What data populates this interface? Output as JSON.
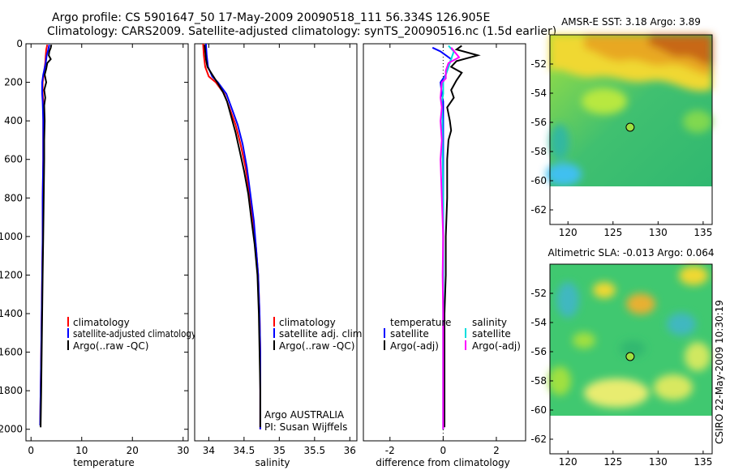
{
  "header": {
    "line1": "Argo profile: CS 5901647_50 17-May-2009 20090518_111 56.334S 126.905E",
    "line2": "Climatology: CARS2009. Satellite-adjusted climatology: synTS_20090516.nc (1.5d earlier)"
  },
  "footer_stamp": "CSIRO 22-May-2009 10:30:19",
  "chart_data": [
    {
      "type": "line",
      "id": "temperature",
      "xlabel": "temperature",
      "ylabel": "",
      "xlim": [
        -1,
        31
      ],
      "ylim": [
        2060,
        0
      ],
      "xticks": [
        0,
        10,
        20,
        30
      ],
      "yticks": [
        0,
        200,
        400,
        600,
        800,
        1000,
        1200,
        1400,
        1600,
        1800,
        2000
      ],
      "legend": [
        "climatology",
        "satellite-adjusted climatology",
        "Argo(..raw -QC)"
      ],
      "series": [
        {
          "name": "climatology",
          "color": "#ff0000",
          "points": [
            [
              3.2,
              5
            ],
            [
              3.0,
              30
            ],
            [
              2.9,
              60
            ],
            [
              2.8,
              100
            ],
            [
              2.5,
              160
            ],
            [
              2.3,
              200
            ],
            [
              2.3,
              260
            ],
            [
              2.4,
              300
            ],
            [
              2.4,
              400
            ],
            [
              2.4,
              600
            ],
            [
              2.3,
              800
            ],
            [
              2.3,
              1000
            ],
            [
              2.2,
              1200
            ],
            [
              2.1,
              1400
            ],
            [
              2.0,
              1600
            ],
            [
              1.9,
              1800
            ],
            [
              1.8,
              1980
            ]
          ]
        },
        {
          "name": "satellite-adjusted climatology",
          "color": "#0000ff",
          "points": [
            [
              3.6,
              5
            ],
            [
              3.4,
              30
            ],
            [
              3.1,
              60
            ],
            [
              2.9,
              100
            ],
            [
              2.4,
              160
            ],
            [
              2.2,
              200
            ],
            [
              2.2,
              260
            ],
            [
              2.3,
              300
            ],
            [
              2.4,
              400
            ],
            [
              2.4,
              600
            ],
            [
              2.3,
              800
            ],
            [
              2.3,
              1000
            ],
            [
              2.2,
              1200
            ],
            [
              2.1,
              1400
            ],
            [
              2.0,
              1600
            ],
            [
              1.9,
              1800
            ],
            [
              1.8,
              1980
            ]
          ]
        },
        {
          "name": "Argo(..raw -QC)",
          "color": "#000000",
          "points": [
            [
              4.0,
              5
            ],
            [
              3.9,
              20
            ],
            [
              3.6,
              40
            ],
            [
              3.5,
              60
            ],
            [
              3.9,
              80
            ],
            [
              3.2,
              100
            ],
            [
              3.0,
              130
            ],
            [
              2.7,
              160
            ],
            [
              3.0,
              200
            ],
            [
              2.6,
              240
            ],
            [
              2.8,
              280
            ],
            [
              2.6,
              320
            ],
            [
              2.7,
              400
            ],
            [
              2.6,
              500
            ],
            [
              2.6,
              600
            ],
            [
              2.5,
              800
            ],
            [
              2.4,
              1000
            ],
            [
              2.3,
              1200
            ],
            [
              2.2,
              1400
            ],
            [
              2.1,
              1600
            ],
            [
              2.0,
              1800
            ],
            [
              1.9,
              1990
            ]
          ]
        }
      ]
    },
    {
      "type": "line",
      "id": "salinity",
      "xlabel": "salinity",
      "xlim": [
        33.8,
        36.1
      ],
      "ylim": [
        2060,
        0
      ],
      "xticks": [
        34,
        34.5,
        35,
        35.5,
        36
      ],
      "legend": [
        "climatology",
        "satellite adj. clim.",
        "Argo(..raw -QC)"
      ],
      "annotation": [
        "Argo AUSTRALIA",
        "PI: Susan Wijffels"
      ],
      "series": [
        {
          "name": "climatology",
          "color": "#ff0000",
          "points": [
            [
              33.92,
              0
            ],
            [
              33.93,
              60
            ],
            [
              33.95,
              120
            ],
            [
              34.0,
              170
            ],
            [
              34.1,
              200
            ],
            [
              34.22,
              260
            ],
            [
              34.3,
              340
            ],
            [
              34.38,
              420
            ],
            [
              34.45,
              520
            ],
            [
              34.52,
              640
            ],
            [
              34.58,
              780
            ],
            [
              34.63,
              920
            ],
            [
              34.67,
              1060
            ],
            [
              34.7,
              1200
            ],
            [
              34.72,
              1400
            ],
            [
              34.73,
              1600
            ],
            [
              34.73,
              1800
            ],
            [
              34.73,
              2000
            ]
          ]
        },
        {
          "name": "satellite adj. clim.",
          "color": "#0000ff",
          "points": [
            [
              33.96,
              0
            ],
            [
              33.97,
              60
            ],
            [
              33.99,
              120
            ],
            [
              34.05,
              170
            ],
            [
              34.13,
              200
            ],
            [
              34.25,
              260
            ],
            [
              34.33,
              340
            ],
            [
              34.41,
              420
            ],
            [
              34.48,
              520
            ],
            [
              34.54,
              640
            ],
            [
              34.59,
              780
            ],
            [
              34.64,
              920
            ],
            [
              34.67,
              1060
            ],
            [
              34.7,
              1200
            ],
            [
              34.72,
              1400
            ],
            [
              34.73,
              1600
            ],
            [
              34.73,
              1800
            ],
            [
              34.73,
              2000
            ]
          ]
        },
        {
          "name": "Argo(..raw -QC)",
          "color": "#000000",
          "points": [
            [
              33.94,
              5
            ],
            [
              33.95,
              40
            ],
            [
              33.96,
              80
            ],
            [
              33.98,
              120
            ],
            [
              34.05,
              160
            ],
            [
              34.12,
              200
            ],
            [
              34.2,
              250
            ],
            [
              34.26,
              300
            ],
            [
              34.32,
              380
            ],
            [
              34.38,
              460
            ],
            [
              34.44,
              560
            ],
            [
              34.5,
              660
            ],
            [
              34.56,
              780
            ],
            [
              34.6,
              900
            ],
            [
              34.65,
              1040
            ],
            [
              34.69,
              1200
            ],
            [
              34.71,
              1400
            ],
            [
              34.72,
              1600
            ],
            [
              34.73,
              1800
            ],
            [
              34.73,
              1990
            ]
          ]
        }
      ]
    },
    {
      "type": "line",
      "id": "difference",
      "xlabel": "difference from climatology",
      "xlim": [
        -3,
        3.1
      ],
      "ylim": [
        2060,
        0
      ],
      "xticks": [
        -2,
        0,
        2
      ],
      "legend_temperature": {
        "title": "temperature",
        "items": [
          "satellite",
          "Argo(-adj)"
        ]
      },
      "legend_salinity": {
        "title": "salinity",
        "items": [
          "satellite",
          "Argo(-adj)"
        ]
      },
      "series": [
        {
          "name": "temperature satellite",
          "color": "#0000ff",
          "points": [
            [
              -0.4,
              20
            ],
            [
              -0.1,
              40
            ],
            [
              0.3,
              80
            ],
            [
              0.2,
              120
            ],
            [
              0.1,
              160
            ],
            [
              -0.1,
              200
            ],
            [
              -0.05,
              260
            ],
            [
              0,
              300
            ],
            [
              0,
              400
            ],
            [
              0,
              600
            ],
            [
              0,
              1000
            ],
            [
              0,
              1400
            ],
            [
              0,
              2000
            ]
          ]
        },
        {
          "name": "temperature Argo(-adj)",
          "color": "#000000",
          "points": [
            [
              0.7,
              10
            ],
            [
              0.5,
              30
            ],
            [
              1.3,
              60
            ],
            [
              0.5,
              90
            ],
            [
              0.3,
              120
            ],
            [
              0.7,
              150
            ],
            [
              0.5,
              190
            ],
            [
              0.3,
              240
            ],
            [
              0.4,
              280
            ],
            [
              0.15,
              330
            ],
            [
              0.25,
              400
            ],
            [
              0.3,
              450
            ],
            [
              0.2,
              500
            ],
            [
              0.15,
              600
            ],
            [
              0.15,
              800
            ],
            [
              0.1,
              1000
            ],
            [
              0.1,
              1200
            ],
            [
              0.05,
              1400
            ],
            [
              0.05,
              1600
            ],
            [
              0.05,
              1800
            ],
            [
              0.05,
              1990
            ]
          ]
        },
        {
          "name": "salinity satellite",
          "color": "#00dddd",
          "points": [
            [
              0.2,
              10
            ],
            [
              0.4,
              40
            ],
            [
              0.3,
              80
            ],
            [
              0.2,
              120
            ],
            [
              0.1,
              160
            ],
            [
              0,
              200
            ],
            [
              0,
              260
            ],
            [
              -0.05,
              300
            ],
            [
              -0.03,
              400
            ],
            [
              -0.02,
              600
            ],
            [
              0,
              800
            ],
            [
              0,
              1000
            ],
            [
              0,
              1400
            ],
            [
              0,
              1800
            ],
            [
              0,
              2000
            ]
          ]
        },
        {
          "name": "salinity Argo(-adj)",
          "color": "#ff00ff",
          "points": [
            [
              0.3,
              20
            ],
            [
              0.6,
              70
            ],
            [
              0.2,
              100
            ],
            [
              0.1,
              140
            ],
            [
              0.1,
              180
            ],
            [
              -0.05,
              200
            ],
            [
              -0.1,
              280
            ],
            [
              -0.05,
              330
            ],
            [
              -0.1,
              400
            ],
            [
              -0.05,
              500
            ],
            [
              -0.1,
              600
            ],
            [
              -0.05,
              800
            ],
            [
              0,
              1000
            ],
            [
              -0.02,
              1200
            ],
            [
              0,
              1400
            ],
            [
              0,
              1600
            ],
            [
              0,
              1800
            ],
            [
              0,
              2000
            ]
          ]
        }
      ]
    },
    {
      "type": "heatmap",
      "id": "sst_map",
      "title": "AMSR-E SST: 3.18 Argo: 3.89",
      "xlim": [
        118,
        136
      ],
      "ylim": [
        -63,
        -50
      ],
      "xticks": [
        120,
        125,
        130,
        135
      ],
      "yticks": [
        -52,
        -54,
        -56,
        -58,
        -60,
        -62
      ],
      "marker": {
        "lon": 126.905,
        "lat": -56.334
      },
      "colors": [
        "#f0d830",
        "#e0a020",
        "#c06010",
        "#a0e040",
        "#30c070",
        "#40c8f0",
        "#ffffff"
      ]
    },
    {
      "type": "heatmap",
      "id": "sla_map",
      "title": "Altimetric SLA: -0.013 Argo: 0.064",
      "xlim": [
        118,
        136
      ],
      "ylim": [
        -63,
        -50
      ],
      "xticks": [
        120,
        125,
        130,
        135
      ],
      "yticks": [
        -52,
        -54,
        -56,
        -58,
        -60,
        -62
      ],
      "marker": {
        "lon": 126.905,
        "lat": -56.334
      },
      "colors": [
        "#f0d830",
        "#e8b030",
        "#a0e040",
        "#30c070",
        "#40b8c0",
        "#ffffff"
      ]
    }
  ]
}
